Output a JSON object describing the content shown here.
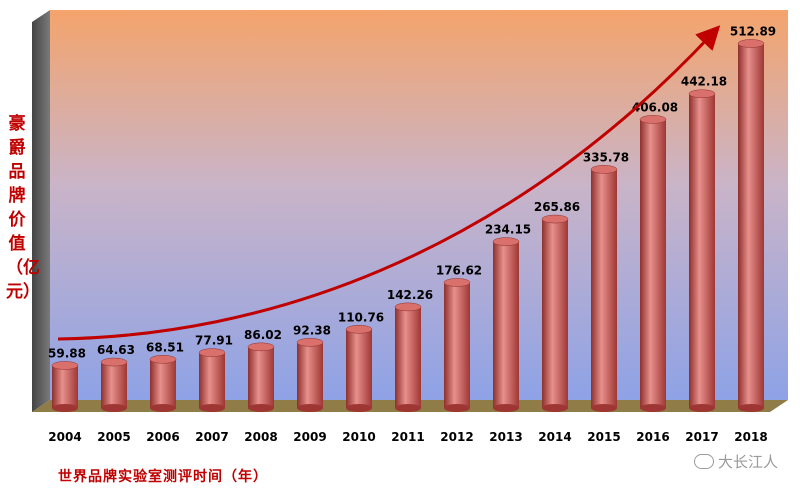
{
  "chart_data": {
    "type": "bar",
    "categories": [
      "2004",
      "2005",
      "2006",
      "2007",
      "2008",
      "2009",
      "2010",
      "2011",
      "2012",
      "2013",
      "2014",
      "2015",
      "2016",
      "2017",
      "2018"
    ],
    "values": [
      59.88,
      64.63,
      68.51,
      77.91,
      86.02,
      92.38,
      110.76,
      142.26,
      176.62,
      234.15,
      265.86,
      335.78,
      406.08,
      442.18,
      512.89
    ],
    "value_labels": [
      "59.88",
      "64.63",
      "68.51",
      "77.91",
      "86.02",
      "92.38",
      "110.76",
      "142.26",
      "176.62",
      "234.15",
      "265.86",
      "335.78",
      "406.08",
      "442.18",
      "512.89"
    ],
    "xlabel": "世界品牌实验室测评时间（年）",
    "ylabel": "豪爵品牌价值（亿元）",
    "ylim": [
      0,
      560
    ],
    "grid": false,
    "trend_arrow": true,
    "colors": {
      "bar": "#c0504d",
      "arrow": "#c00000",
      "label": "#c00000"
    }
  },
  "watermark": "大长江人"
}
